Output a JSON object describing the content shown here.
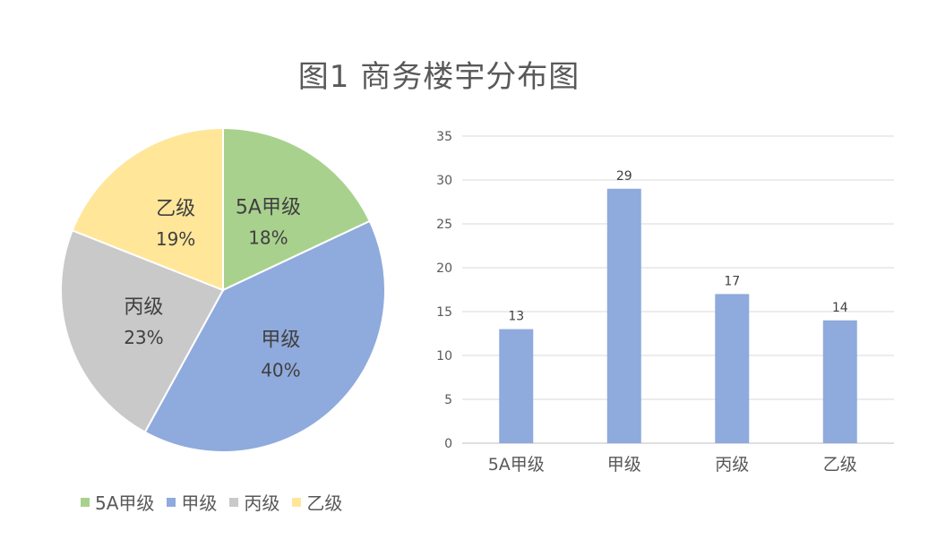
{
  "title": "图1 商务楼宇分布图",
  "chart_data": [
    {
      "type": "pie",
      "labels": [
        "5A甲级",
        "甲级",
        "丙级",
        "乙级"
      ],
      "values": [
        18,
        40,
        23,
        19
      ],
      "value_labels": [
        "18%",
        "40%",
        "23%",
        "19%"
      ],
      "colors": [
        "#a9d18e",
        "#8faadc",
        "#c9c9c9",
        "#ffe699"
      ],
      "legend_position": "bottom"
    },
    {
      "type": "bar",
      "categories": [
        "5A甲级",
        "甲级",
        "丙级",
        "乙级"
      ],
      "values": [
        13,
        29,
        17,
        14
      ],
      "ylim": [
        0,
        35
      ],
      "yticks": [
        0,
        5,
        10,
        15,
        20,
        25,
        30,
        35
      ],
      "grid": true,
      "color": "#8faadc"
    }
  ]
}
